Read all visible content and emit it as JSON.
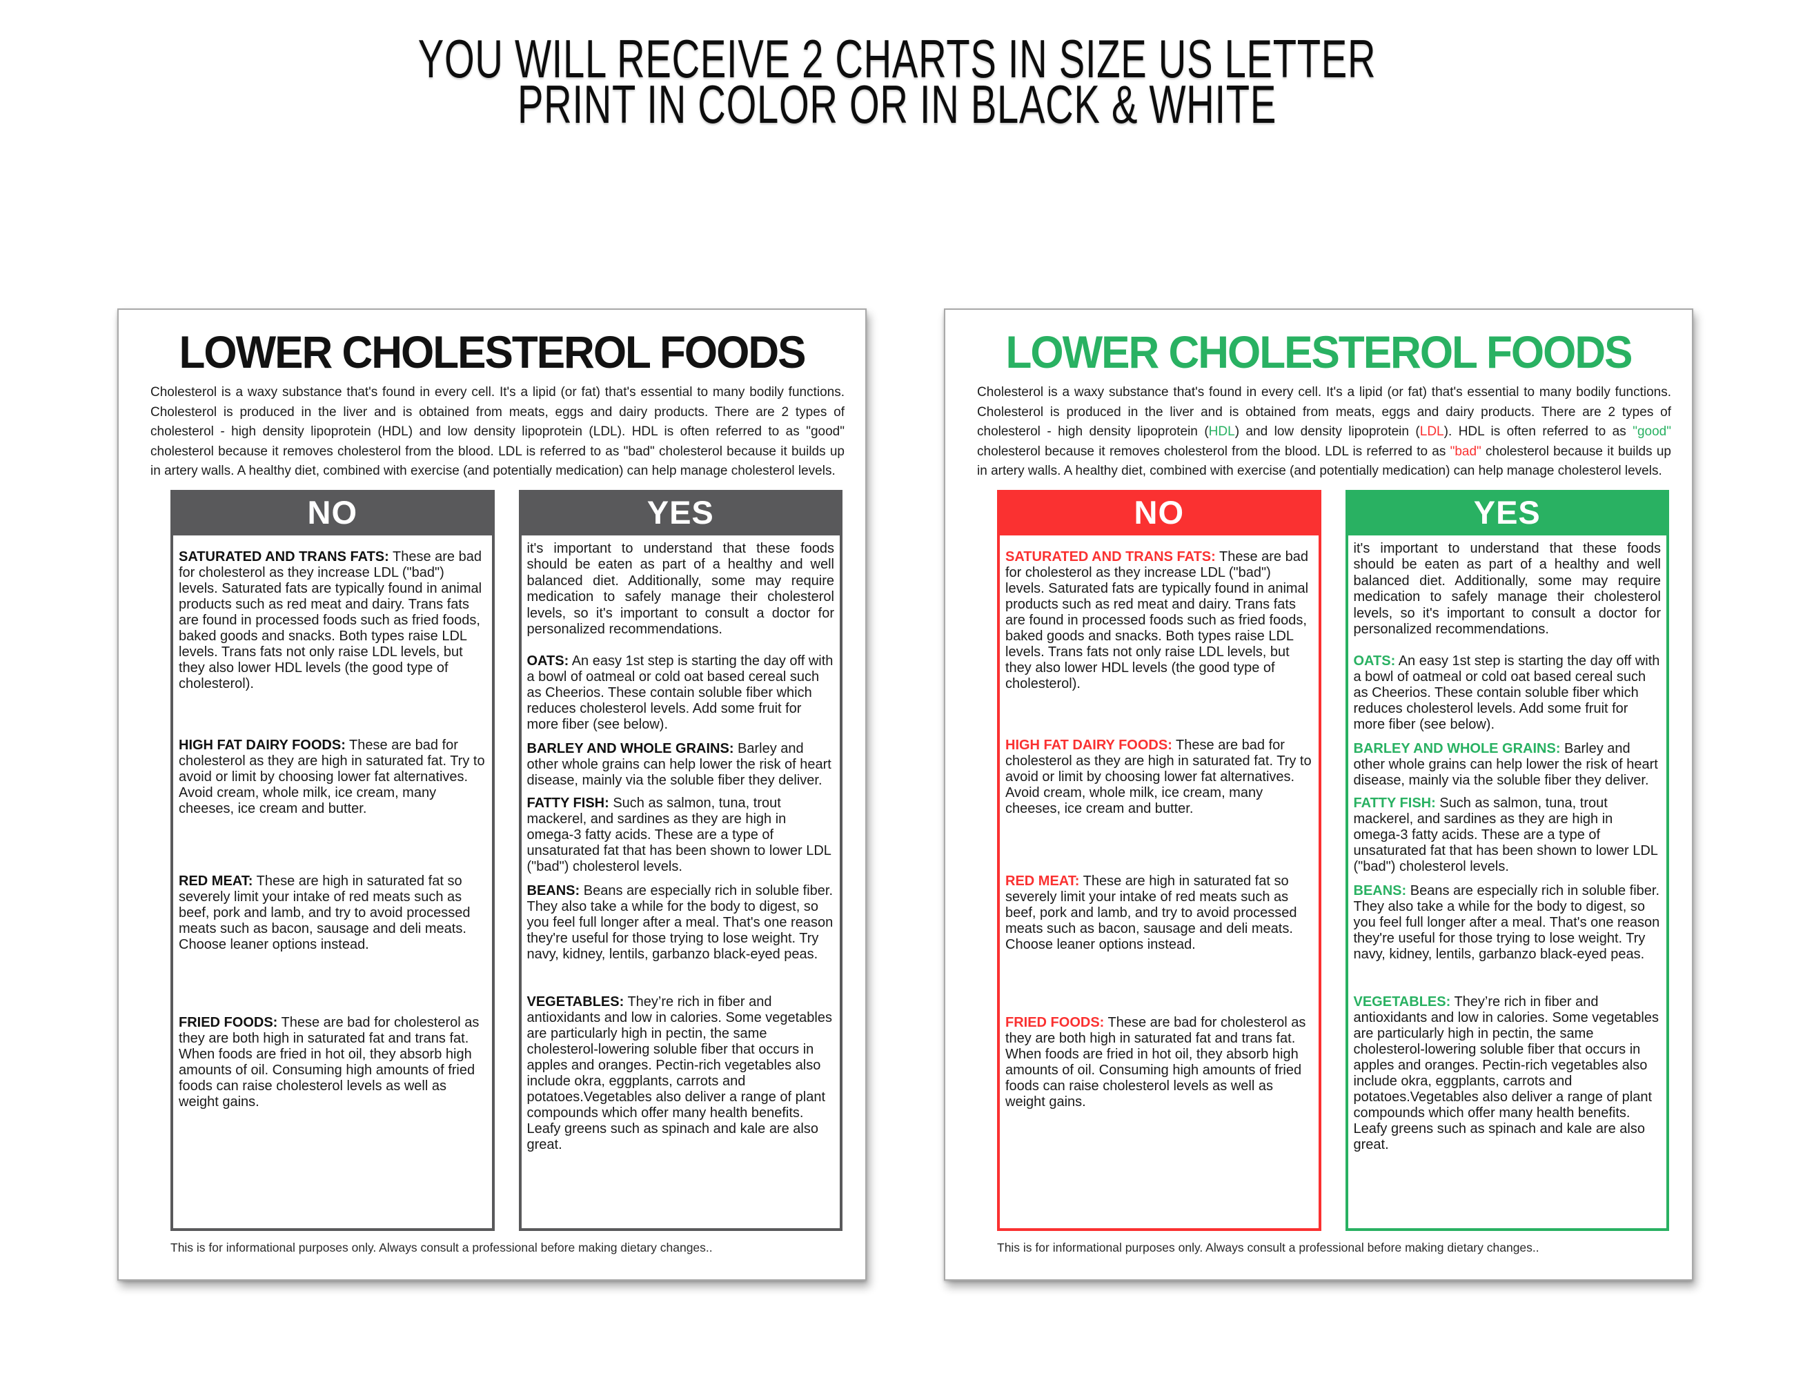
{
  "header": {
    "line1": "YOU WILL RECEIVE 2 CHARTS IN SIZE US LETTER",
    "line2": "PRINT IN COLOR OR IN BLACK & WHITE"
  },
  "colors": {
    "accent_red": "#fa3131",
    "accent_green": "#29b162",
    "neutral_gray": "#59595b"
  },
  "content": {
    "title": "LOWER CHOLESTEROL FOODS",
    "intro": {
      "p1": "Cholesterol is a waxy substance that's found in every cell. It's a lipid (or fat) that's essential to many bodily functions.  Cholesterol is produced in the liver and is obtained from meats, eggs and dairy products. There are 2 types of cholesterol - high density lipoprotein (",
      "hdl": "HDL",
      "p2": ") and low density lipoprotein (",
      "ldl": "LDL",
      "p3": ").  HDL is often referred to as ",
      "good": "\"good\"",
      "p4": " cholesterol because it removes cholesterol from the blood. LDL is referred to as ",
      "bad": "\"bad\"",
      "p5": " cholesterol because it builds up in artery walls. A healthy diet, combined with exercise (and potentially medication) can help manage cholesterol levels."
    },
    "no_header": "NO",
    "yes_header": "YES",
    "no_items": [
      {
        "keyword": "SATURATED AND TRANS FATS:",
        "text": " These are bad for cholesterol as they increase LDL (\"bad\") levels. Saturated fats are typically found in animal products such as red meat and dairy. Trans fats are found in processed foods such as fried foods, baked goods and snacks. Both types raise LDL levels. Trans fats not only raise LDL levels, but they also lower HDL levels (the good type of cholesterol)."
      },
      {
        "keyword": "HIGH FAT DAIRY FOODS:",
        "text": " These are bad for cholesterol as they are high in saturated fat.  Try to avoid or limit by choosing lower fat alternatives.  Avoid cream, whole milk, ice cream, many cheeses, ice cream and butter."
      },
      {
        "keyword": "RED MEAT:",
        "text": " These are high in saturated fat so severely limit your intake of red meats such as beef, pork and lamb, and try to avoid processed meats such as bacon, sausage and deli meats.  Choose leaner options instead."
      },
      {
        "keyword": "FRIED FOODS:",
        "text": " These are bad for cholesterol as they are both high in saturated fat and trans fat.  When foods are fried in hot oil, they absorb high amounts of oil. Consuming high amounts of fried foods can raise cholesterol levels as well as weight gains."
      }
    ],
    "yes_intro": "it's important to understand that these foods should be eaten as part of a healthy and well balanced diet. Additionally, some may require medication to safely manage their cholesterol levels, so it's important to consult a doctor for personalized recommendations.",
    "yes_items": [
      {
        "keyword": "OATS:",
        "text": " An easy 1st step is starting the day off with a bowl of oatmeal or cold oat based cereal such as Cheerios.  These contain soluble fiber which reduces cholesterol levels. Add some fruit for more fiber (see below)."
      },
      {
        "keyword": "BARLEY AND WHOLE GRAINS:",
        "text": " Barley and other whole grains can help lower the risk of heart disease, mainly via the soluble fiber they deliver."
      },
      {
        "keyword": "FATTY FISH:",
        "text": " Such as salmon, tuna, trout mackerel, and sardines as they are high in omega-3 fatty acids.  These are a type of unsaturated fat that has been shown to lower LDL (\"bad\") cholesterol levels."
      },
      {
        "keyword": "BEANS:",
        "text": " Beans are especially rich in soluble fiber. They also take a while for the body to digest, so you feel full longer after a meal. That's one reason they're useful for those trying to lose weight.  Try navy, kidney, lentils, garbanzo black-eyed peas."
      },
      {
        "keyword": "VEGETABLES:",
        "text": " They’re rich in fiber and antioxidants and low in calories. Some vegetables are particularly high in pectin, the same cholesterol-lowering soluble fiber that occurs in apples and oranges. Pectin-rich vegetables also include okra, eggplants, carrots and potatoes.Vegetables also deliver a range of plant compounds which offer many health benefits. Leafy greens such as spinach and kale are also great."
      }
    ],
    "disclaimer": "This is for informational purposes only. Always consult a professional before making dietary changes.."
  }
}
